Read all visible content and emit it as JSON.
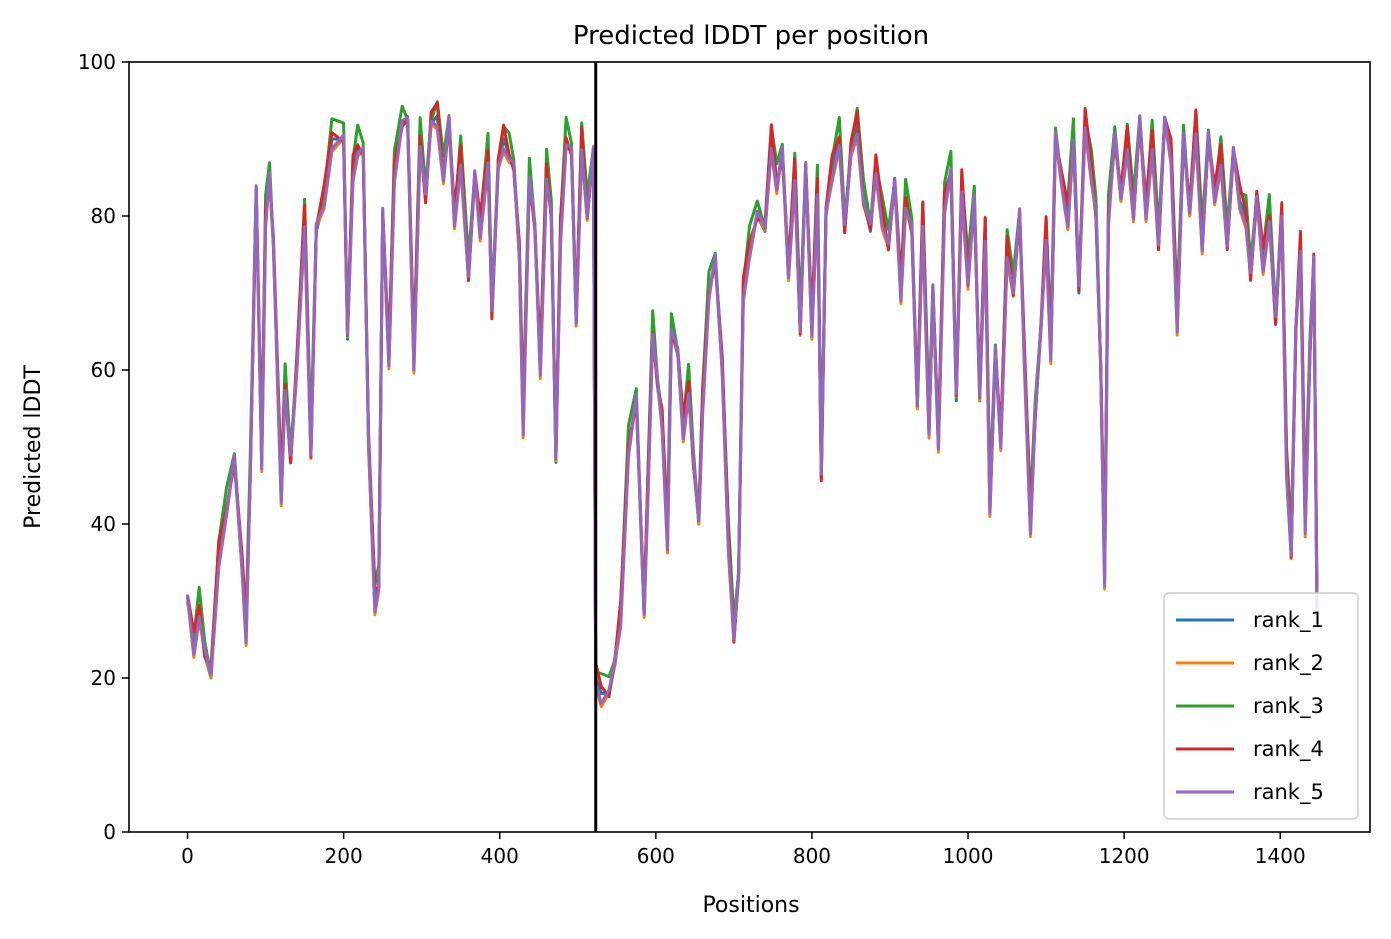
{
  "chart_data": {
    "type": "line",
    "title": "Predicted lDDT per position",
    "xlabel": "Positions",
    "ylabel": "Predicted lDDT",
    "xlim": [
      -75,
      1515
    ],
    "ylim": [
      0,
      100
    ],
    "xticks": [
      0,
      200,
      400,
      600,
      800,
      1000,
      1200,
      1400
    ],
    "yticks": [
      0,
      20,
      40,
      60,
      80,
      100
    ],
    "grid": false,
    "legend_position": "lower-right",
    "vline_x": 523,
    "series": [
      {
        "name": "rank_1",
        "color": "#1f77b4",
        "offset": 0.0,
        "points": [
          [
            0,
            30
          ],
          [
            8,
            24
          ],
          [
            15,
            29
          ],
          [
            22,
            23
          ],
          [
            30,
            20
          ],
          [
            40,
            36
          ],
          [
            50,
            42
          ],
          [
            60,
            48
          ],
          [
            70,
            34
          ],
          [
            75,
            26
          ],
          [
            80,
            45
          ],
          [
            88,
            83
          ],
          [
            95,
            48
          ],
          [
            100,
            80
          ],
          [
            105,
            85
          ],
          [
            110,
            76
          ],
          [
            120,
            44
          ],
          [
            125,
            58
          ],
          [
            132,
            48
          ],
          [
            140,
            60
          ],
          [
            150,
            80
          ],
          [
            158,
            49
          ],
          [
            165,
            78
          ],
          [
            175,
            82
          ],
          [
            185,
            90
          ],
          [
            200,
            90
          ],
          [
            205,
            64
          ],
          [
            212,
            86
          ],
          [
            218,
            89
          ],
          [
            225,
            88
          ],
          [
            232,
            50
          ],
          [
            240,
            30
          ],
          [
            245,
            32
          ],
          [
            250,
            80
          ],
          [
            258,
            61
          ],
          [
            265,
            86
          ],
          [
            275,
            92
          ],
          [
            282,
            92
          ],
          [
            290,
            61
          ],
          [
            298,
            90
          ],
          [
            305,
            82
          ],
          [
            312,
            92
          ],
          [
            320,
            93
          ],
          [
            328,
            85
          ],
          [
            335,
            92
          ],
          [
            342,
            79
          ],
          [
            350,
            88
          ],
          [
            360,
            72
          ],
          [
            368,
            85
          ],
          [
            375,
            78
          ],
          [
            385,
            88
          ],
          [
            390,
            67
          ],
          [
            398,
            86
          ],
          [
            405,
            90
          ],
          [
            412,
            88
          ],
          [
            418,
            86
          ],
          [
            425,
            75
          ],
          [
            430,
            53
          ],
          [
            438,
            85
          ],
          [
            445,
            78
          ],
          [
            452,
            60
          ],
          [
            460,
            86
          ],
          [
            466,
            80
          ],
          [
            472,
            48
          ],
          [
            478,
            78
          ],
          [
            485,
            90
          ],
          [
            492,
            88
          ],
          [
            498,
            66
          ],
          [
            505,
            90
          ],
          [
            512,
            80
          ],
          [
            520,
            88
          ],
          [
            523,
            20
          ],
          [
            530,
            18
          ],
          [
            540,
            18
          ],
          [
            548,
            22
          ],
          [
            555,
            28
          ],
          [
            565,
            50
          ],
          [
            575,
            56
          ],
          [
            585,
            28
          ],
          [
            590,
            45
          ],
          [
            596,
            65
          ],
          [
            602,
            58
          ],
          [
            608,
            53
          ],
          [
            615,
            38
          ],
          [
            620,
            65
          ],
          [
            628,
            62
          ],
          [
            635,
            52
          ],
          [
            642,
            58
          ],
          [
            648,
            48
          ],
          [
            655,
            40
          ],
          [
            660,
            56
          ],
          [
            668,
            70
          ],
          [
            676,
            74
          ],
          [
            685,
            60
          ],
          [
            693,
            38
          ],
          [
            700,
            25
          ],
          [
            706,
            33
          ],
          [
            712,
            70
          ],
          [
            720,
            76
          ],
          [
            730,
            80
          ],
          [
            740,
            78
          ],
          [
            748,
            90
          ],
          [
            755,
            84
          ],
          [
            762,
            88
          ],
          [
            770,
            72
          ],
          [
            778,
            86
          ],
          [
            785,
            65
          ],
          [
            792,
            86
          ],
          [
            800,
            65
          ],
          [
            807,
            84
          ],
          [
            812,
            46
          ],
          [
            818,
            80
          ],
          [
            826,
            86
          ],
          [
            835,
            90
          ],
          [
            842,
            78
          ],
          [
            850,
            88
          ],
          [
            858,
            92
          ],
          [
            866,
            82
          ],
          [
            875,
            78
          ],
          [
            882,
            86
          ],
          [
            890,
            80
          ],
          [
            898,
            76
          ],
          [
            906,
            84
          ],
          [
            914,
            70
          ],
          [
            920,
            82
          ],
          [
            928,
            78
          ],
          [
            935,
            55
          ],
          [
            942,
            80
          ],
          [
            950,
            52
          ],
          [
            955,
            70
          ],
          [
            962,
            50
          ],
          [
            970,
            82
          ],
          [
            978,
            86
          ],
          [
            985,
            56
          ],
          [
            992,
            84
          ],
          [
            1000,
            72
          ],
          [
            1008,
            82
          ],
          [
            1015,
            56
          ],
          [
            1022,
            78
          ],
          [
            1028,
            42
          ],
          [
            1035,
            62
          ],
          [
            1042,
            50
          ],
          [
            1050,
            76
          ],
          [
            1058,
            70
          ],
          [
            1066,
            80
          ],
          [
            1072,
            62
          ],
          [
            1080,
            40
          ],
          [
            1086,
            54
          ],
          [
            1094,
            66
          ],
          [
            1100,
            78
          ],
          [
            1106,
            62
          ],
          [
            1112,
            90
          ],
          [
            1120,
            84
          ],
          [
            1128,
            80
          ],
          [
            1135,
            90
          ],
          [
            1142,
            70
          ],
          [
            1150,
            92
          ],
          [
            1158,
            86
          ],
          [
            1164,
            80
          ],
          [
            1170,
            60
          ],
          [
            1175,
            33
          ],
          [
            1180,
            80
          ],
          [
            1188,
            90
          ],
          [
            1196,
            82
          ],
          [
            1204,
            90
          ],
          [
            1212,
            80
          ],
          [
            1220,
            92
          ],
          [
            1228,
            80
          ],
          [
            1236,
            90
          ],
          [
            1244,
            76
          ],
          [
            1252,
            92
          ],
          [
            1260,
            88
          ],
          [
            1268,
            66
          ],
          [
            1276,
            90
          ],
          [
            1284,
            80
          ],
          [
            1292,
            92
          ],
          [
            1300,
            76
          ],
          [
            1308,
            90
          ],
          [
            1316,
            82
          ],
          [
            1324,
            88
          ],
          [
            1332,
            76
          ],
          [
            1340,
            88
          ],
          [
            1348,
            82
          ],
          [
            1356,
            80
          ],
          [
            1362,
            72
          ],
          [
            1370,
            82
          ],
          [
            1378,
            74
          ],
          [
            1386,
            80
          ],
          [
            1394,
            66
          ],
          [
            1402,
            80
          ],
          [
            1408,
            48
          ],
          [
            1414,
            36
          ],
          [
            1420,
            65
          ],
          [
            1426,
            76
          ],
          [
            1432,
            40
          ],
          [
            1438,
            62
          ],
          [
            1443,
            74
          ],
          [
            1447,
            30
          ]
        ]
      },
      {
        "name": "rank_2",
        "color": "#ff7f0e",
        "offset": -0.6,
        "points": []
      },
      {
        "name": "rank_3",
        "color": "#2ca02c",
        "offset": 1.6,
        "points": []
      },
      {
        "name": "rank_4",
        "color": "#d62728",
        "offset": 0.8,
        "points": []
      },
      {
        "name": "rank_5",
        "color": "#9467bd",
        "offset": -0.2,
        "points": []
      }
    ]
  }
}
